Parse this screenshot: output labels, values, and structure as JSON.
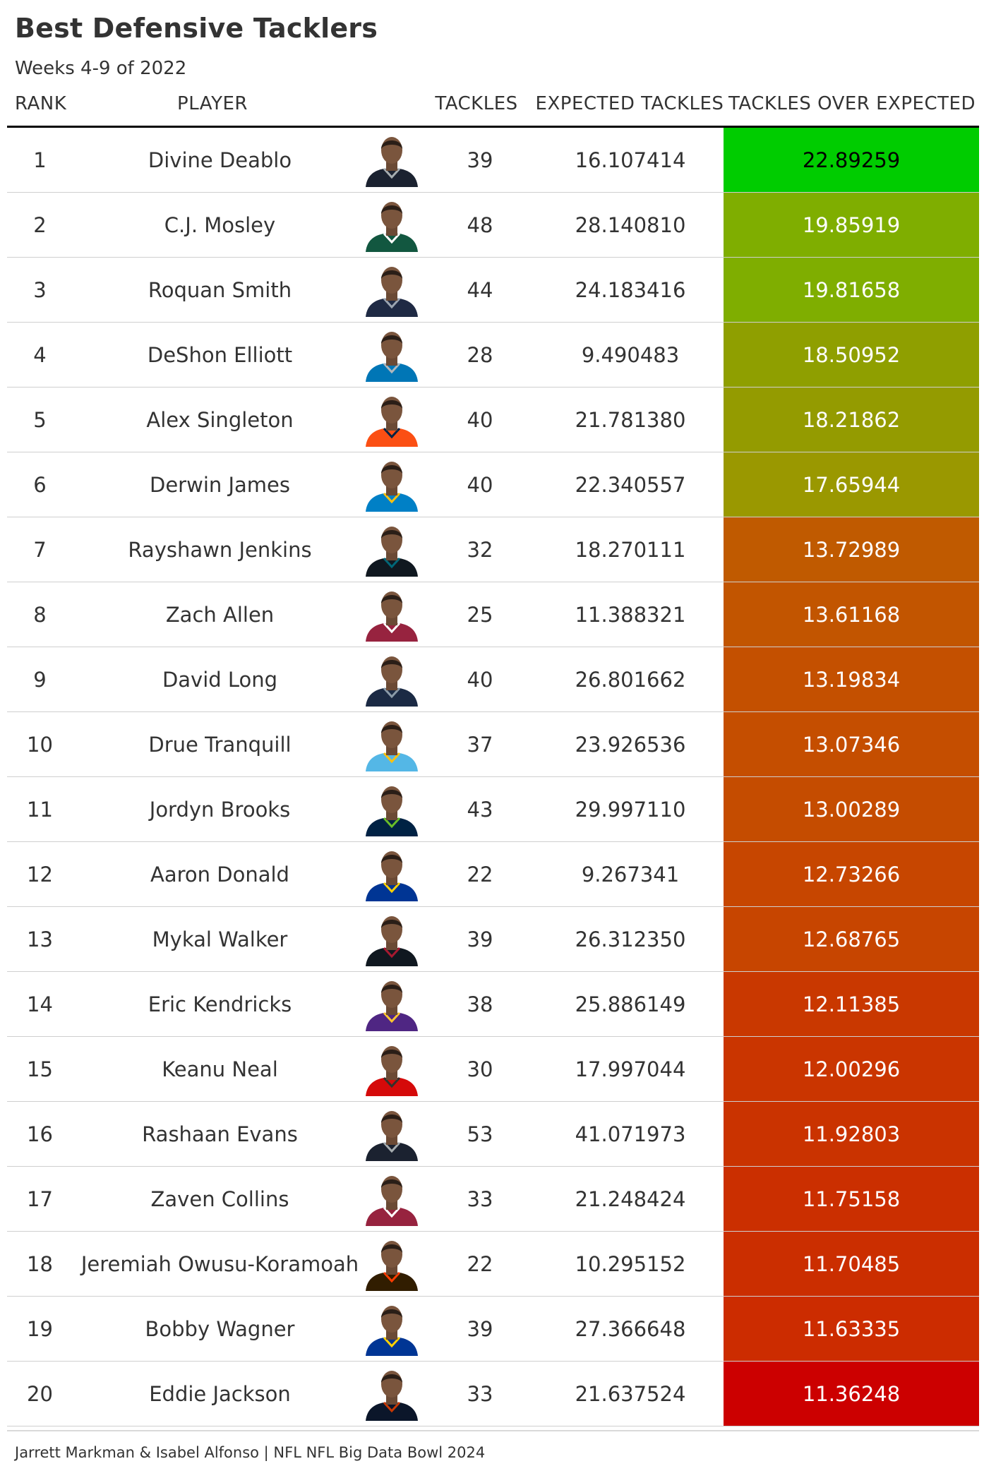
{
  "title": "Best Defensive Tacklers",
  "subtitle": "Weeks 4-9 of 2022",
  "columns": {
    "rank": "RANK",
    "player": "PLAYER",
    "tackles": "TACKLES",
    "expected": "EXPECTED TACKLES",
    "over": "TACKLES OVER EXPECTED"
  },
  "footer": "Jarrett Markman & Isabel Alfonso | NFL NFL Big Data Bowl 2024",
  "chart_data": {
    "type": "table",
    "columns": [
      "RANK",
      "PLAYER",
      "TACKLES",
      "EXPECTED TACKLES",
      "TACKLES OVER EXPECTED"
    ],
    "rows": [
      {
        "rank": "1",
        "player": "Divine Deablo",
        "tackles": "39",
        "expected": "16.107414",
        "over": "22.89259",
        "fill": "#00cc00",
        "text_color": "#000000",
        "jersey": "#1b2230",
        "trim": "#a5acaf"
      },
      {
        "rank": "2",
        "player": "C.J. Mosley",
        "tackles": "48",
        "expected": "28.140810",
        "over": "19.85919",
        "fill": "#7fae00",
        "text_color": "#ffffff",
        "jersey": "#125740",
        "trim": "#ffffff"
      },
      {
        "rank": "3",
        "player": "Roquan Smith",
        "tackles": "44",
        "expected": "24.183416",
        "over": "19.81658",
        "fill": "#7fae00",
        "text_color": "#ffffff",
        "jersey": "#1f2a44",
        "trim": "#9aa4b0"
      },
      {
        "rank": "4",
        "player": "DeShon Elliott",
        "tackles": "28",
        "expected": "9.490483",
        "over": "18.50952",
        "fill": "#8f9f00",
        "text_color": "#ffffff",
        "jersey": "#0076b6",
        "trim": "#b0b7bc"
      },
      {
        "rank": "5",
        "player": "Alex Singleton",
        "tackles": "40",
        "expected": "21.781380",
        "over": "18.21862",
        "fill": "#949b00",
        "text_color": "#ffffff",
        "jersey": "#fb4f14",
        "trim": "#002244"
      },
      {
        "rank": "6",
        "player": "Derwin James",
        "tackles": "40",
        "expected": "22.340557",
        "over": "17.65944",
        "fill": "#9a9800",
        "text_color": "#ffffff",
        "jersey": "#0080c6",
        "trim": "#ffc20e"
      },
      {
        "rank": "7",
        "player": "Rayshawn Jenkins",
        "tackles": "32",
        "expected": "18.270111",
        "over": "13.72989",
        "fill": "#c05a00",
        "text_color": "#ffffff",
        "jersey": "#101820",
        "trim": "#006778"
      },
      {
        "rank": "8",
        "player": "Zach Allen",
        "tackles": "25",
        "expected": "11.388321",
        "over": "13.61168",
        "fill": "#c25500",
        "text_color": "#ffffff",
        "jersey": "#97233f",
        "trim": "#ffffff"
      },
      {
        "rank": "9",
        "player": "David Long",
        "tackles": "40",
        "expected": "26.801662",
        "over": "13.19834",
        "fill": "#c45000",
        "text_color": "#ffffff",
        "jersey": "#1b2a44",
        "trim": "#8a9aa8"
      },
      {
        "rank": "10",
        "player": "Drue Tranquill",
        "tackles": "37",
        "expected": "23.926536",
        "over": "13.07346",
        "fill": "#c54e00",
        "text_color": "#ffffff",
        "jersey": "#54b7e6",
        "trim": "#ffc20e"
      },
      {
        "rank": "11",
        "player": "Jordyn Brooks",
        "tackles": "43",
        "expected": "29.997110",
        "over": "13.00289",
        "fill": "#c54c00",
        "text_color": "#ffffff",
        "jersey": "#002244",
        "trim": "#69be28"
      },
      {
        "rank": "12",
        "player": "Aaron Donald",
        "tackles": "22",
        "expected": "9.267341",
        "over": "12.73266",
        "fill": "#c74600",
        "text_color": "#ffffff",
        "jersey": "#003594",
        "trim": "#ffd100"
      },
      {
        "rank": "13",
        "player": "Mykal Walker",
        "tackles": "39",
        "expected": "26.312350",
        "over": "12.68765",
        "fill": "#c74500",
        "text_color": "#ffffff",
        "jersey": "#101820",
        "trim": "#a71930"
      },
      {
        "rank": "14",
        "player": "Eric Kendricks",
        "tackles": "38",
        "expected": "25.886149",
        "over": "12.11385",
        "fill": "#c93800",
        "text_color": "#ffffff",
        "jersey": "#4f2683",
        "trim": "#ffc62f"
      },
      {
        "rank": "15",
        "player": "Keanu Neal",
        "tackles": "30",
        "expected": "17.997044",
        "over": "12.00296",
        "fill": "#ca3500",
        "text_color": "#ffffff",
        "jersey": "#d50a0a",
        "trim": "#34302b"
      },
      {
        "rank": "16",
        "player": "Rashaan Evans",
        "tackles": "53",
        "expected": "41.071973",
        "over": "11.92803",
        "fill": "#ca3300",
        "text_color": "#ffffff",
        "jersey": "#1b2230",
        "trim": "#a5acaf"
      },
      {
        "rank": "17",
        "player": "Zaven Collins",
        "tackles": "33",
        "expected": "21.248424",
        "over": "11.75158",
        "fill": "#cb2f00",
        "text_color": "#ffffff",
        "jersey": "#97233f",
        "trim": "#ffffff"
      },
      {
        "rank": "18",
        "player": "Jeremiah Owusu-Koramoah",
        "tackles": "22",
        "expected": "10.295152",
        "over": "11.70485",
        "fill": "#cb2e00",
        "text_color": "#ffffff",
        "jersey": "#311d00",
        "trim": "#ff3c00"
      },
      {
        "rank": "19",
        "player": "Bobby Wagner",
        "tackles": "39",
        "expected": "27.366648",
        "over": "11.63335",
        "fill": "#cc2c00",
        "text_color": "#ffffff",
        "jersey": "#003594",
        "trim": "#ffd100"
      },
      {
        "rank": "20",
        "player": "Eddie Jackson",
        "tackles": "33",
        "expected": "21.637524",
        "over": "11.36248",
        "fill": "#cc0000",
        "text_color": "#ffffff",
        "jersey": "#0b162a",
        "trim": "#c83803"
      }
    ]
  }
}
